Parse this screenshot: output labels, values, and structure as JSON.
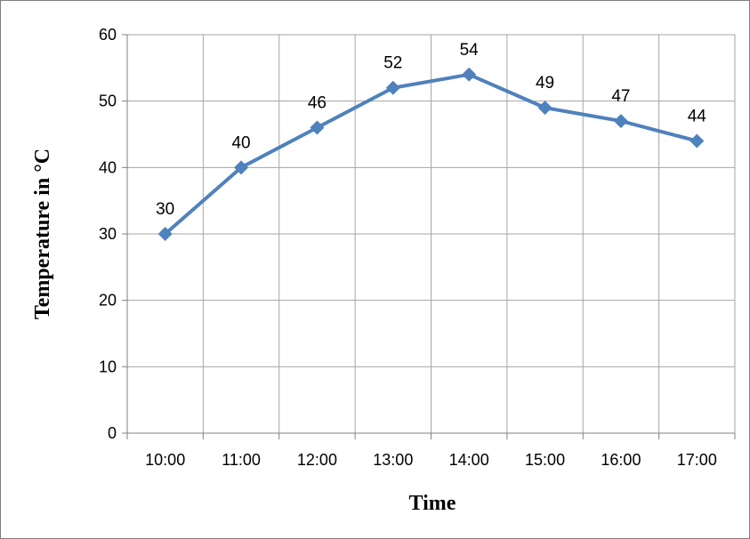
{
  "chart_data": {
    "type": "line",
    "categories": [
      "10:00",
      "11:00",
      "12:00",
      "13:00",
      "14:00",
      "15:00",
      "16:00",
      "17:00"
    ],
    "series": [
      {
        "values": [
          30,
          40,
          46,
          52,
          54,
          49,
          47,
          44
        ]
      }
    ],
    "title": "",
    "xlabel": "Time",
    "ylabel": "Temperature in °C",
    "ylim": [
      0,
      60
    ],
    "yticks": [
      0,
      10,
      20,
      30,
      40,
      50,
      60
    ],
    "grid": true,
    "legend": "none",
    "data_labels": true,
    "marker": "diamond",
    "colors": {
      "series": "#4f81bd",
      "grid": "#a6a6a6",
      "axis": "#808080",
      "frame": "#7f7f7f"
    }
  }
}
